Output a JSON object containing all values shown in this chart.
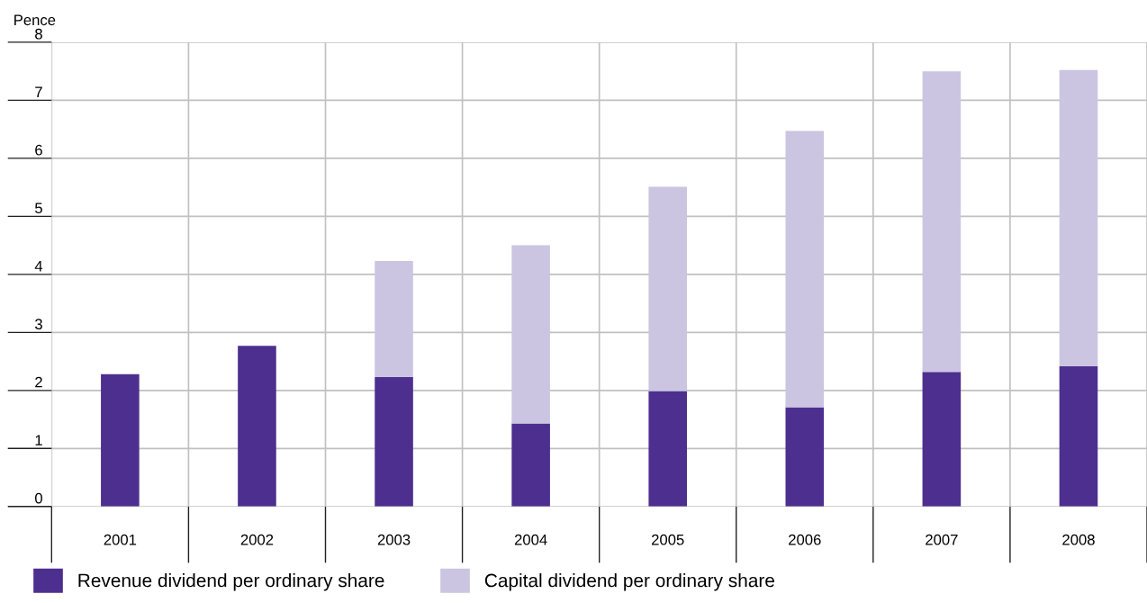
{
  "chart_data": {
    "type": "bar",
    "stacked": true,
    "ylabel": "Pence",
    "categories": [
      "2001",
      "2002",
      "2003",
      "2004",
      "2005",
      "2006",
      "2007",
      "2008"
    ],
    "series": [
      {
        "name": "Revenue dividend per ordinary share",
        "color": "#4d2f8f",
        "values": [
          2.28,
          2.77,
          2.23,
          1.43,
          1.99,
          1.71,
          2.32,
          2.42
        ]
      },
      {
        "name": "Capital dividend per ordinary share",
        "color": "#cbc5e2",
        "values": [
          null,
          null,
          2.0,
          3.07,
          3.52,
          4.76,
          5.18,
          5.1
        ]
      }
    ],
    "ylim": [
      0,
      8
    ],
    "yticks": [
      0,
      1,
      2,
      3,
      4,
      5,
      6,
      7,
      8
    ],
    "grid": true,
    "legend": "bottom left"
  }
}
